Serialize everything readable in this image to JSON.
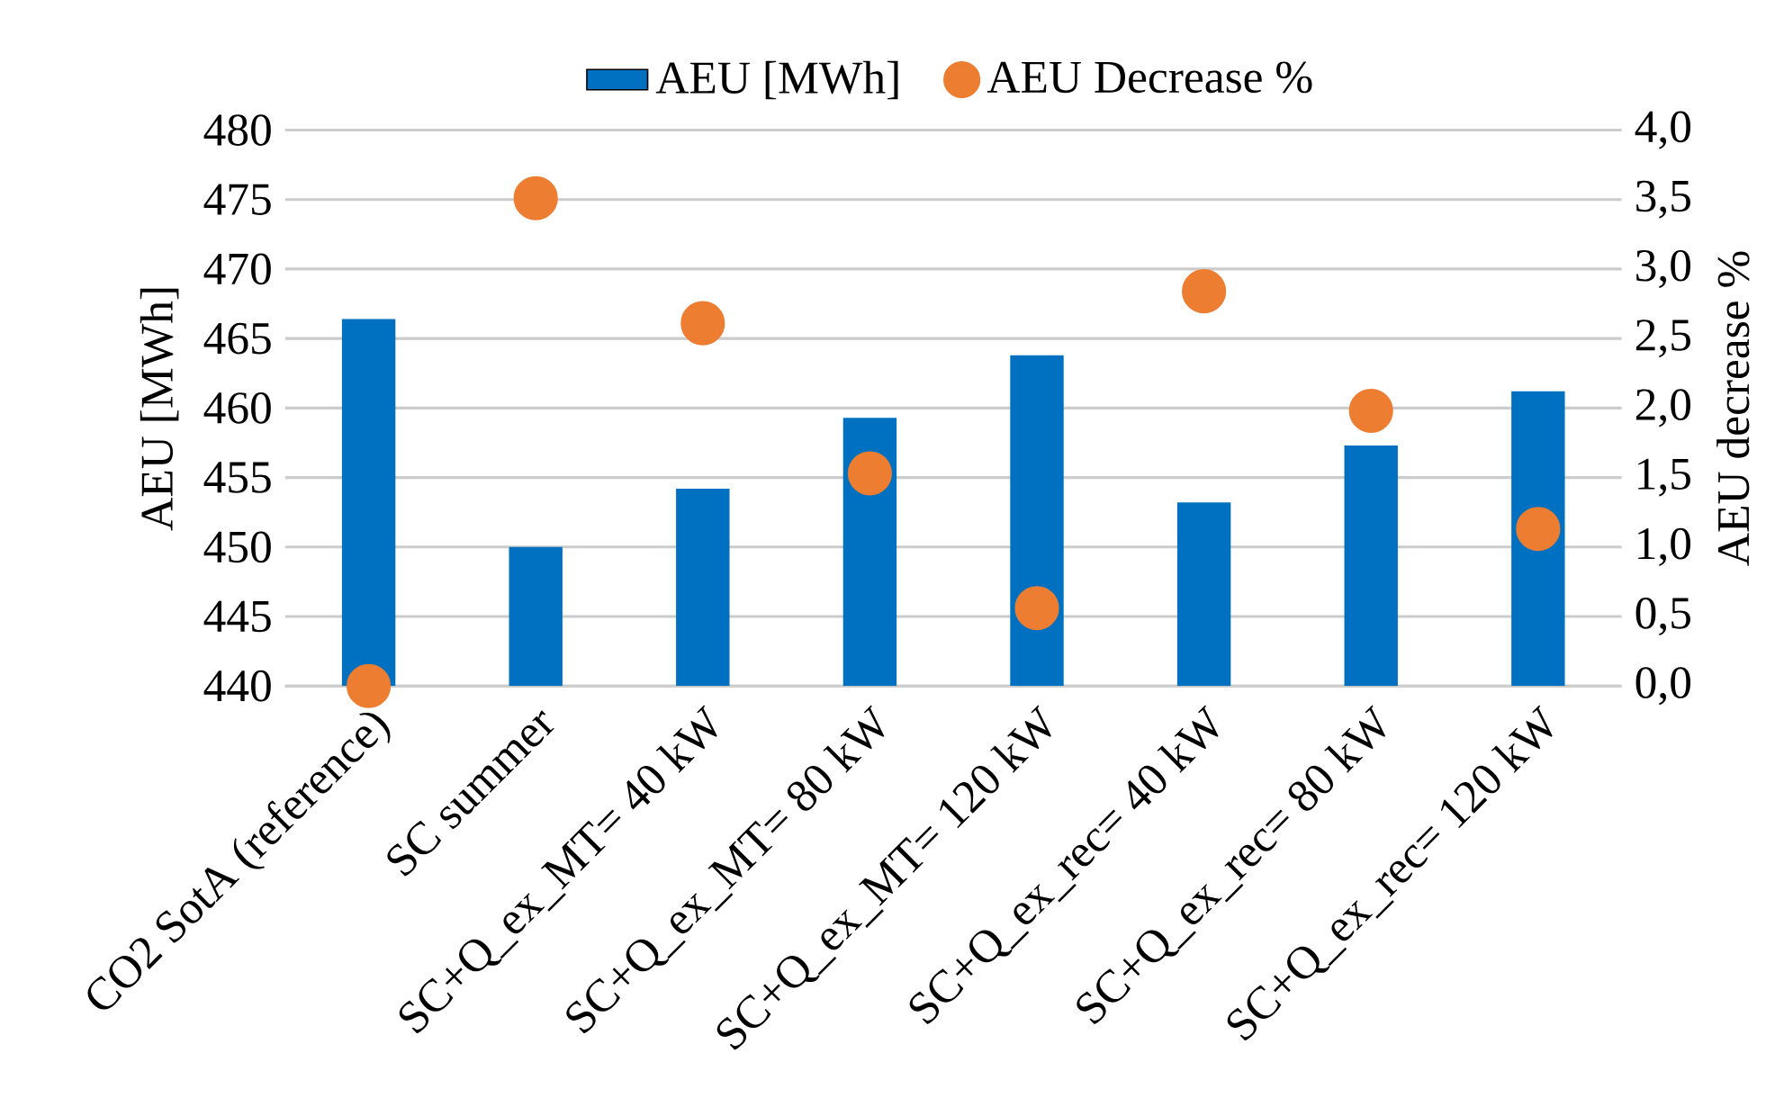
{
  "chart_data": {
    "type": "bar",
    "categories": [
      "CO2 SotA (reference)",
      "SC summer",
      "SC+Q_ex_MT= 40 kW",
      "SC+Q_ex_MT= 80 kW",
      "SC+Q_ex_MT= 120 kW",
      "SC+Q_ex_rec= 40 kW",
      "SC+Q_ex_rec= 80 kW",
      "SC+Q_ex_rec= 120 kW"
    ],
    "series": [
      {
        "name": "AEU [MWh]",
        "type": "bar",
        "color": "#0070c0",
        "values": [
          466.4,
          450.0,
          454.2,
          459.3,
          463.8,
          453.2,
          457.3,
          461.2
        ]
      },
      {
        "name": "AEU Decrease %",
        "type": "scatter",
        "axis": "y2",
        "color": "#ed7d31",
        "values": [
          0.0,
          3.51,
          2.61,
          1.53,
          0.56,
          2.84,
          1.98,
          1.13
        ]
      }
    ],
    "ylabel": "AEU [MWh]",
    "y2label": "AEU decrease %",
    "ylim": [
      440,
      480
    ],
    "yticks": [
      440,
      445,
      450,
      455,
      460,
      465,
      470,
      475,
      480
    ],
    "y2lim": [
      0,
      4
    ],
    "y2ticks": [
      {
        "value": 0,
        "label": "0,0"
      },
      {
        "value": 0.5,
        "label": "0,5"
      },
      {
        "value": 1,
        "label": "1,0"
      },
      {
        "value": 1.5,
        "label": "1,5"
      },
      {
        "value": 2,
        "label": "2,0"
      },
      {
        "value": 2.5,
        "label": "2,5"
      },
      {
        "value": 3,
        "label": "3,0"
      },
      {
        "value": 3.5,
        "label": "3,5"
      },
      {
        "value": 4,
        "label": "4,0"
      }
    ],
    "grid": "y",
    "legend": "top"
  }
}
